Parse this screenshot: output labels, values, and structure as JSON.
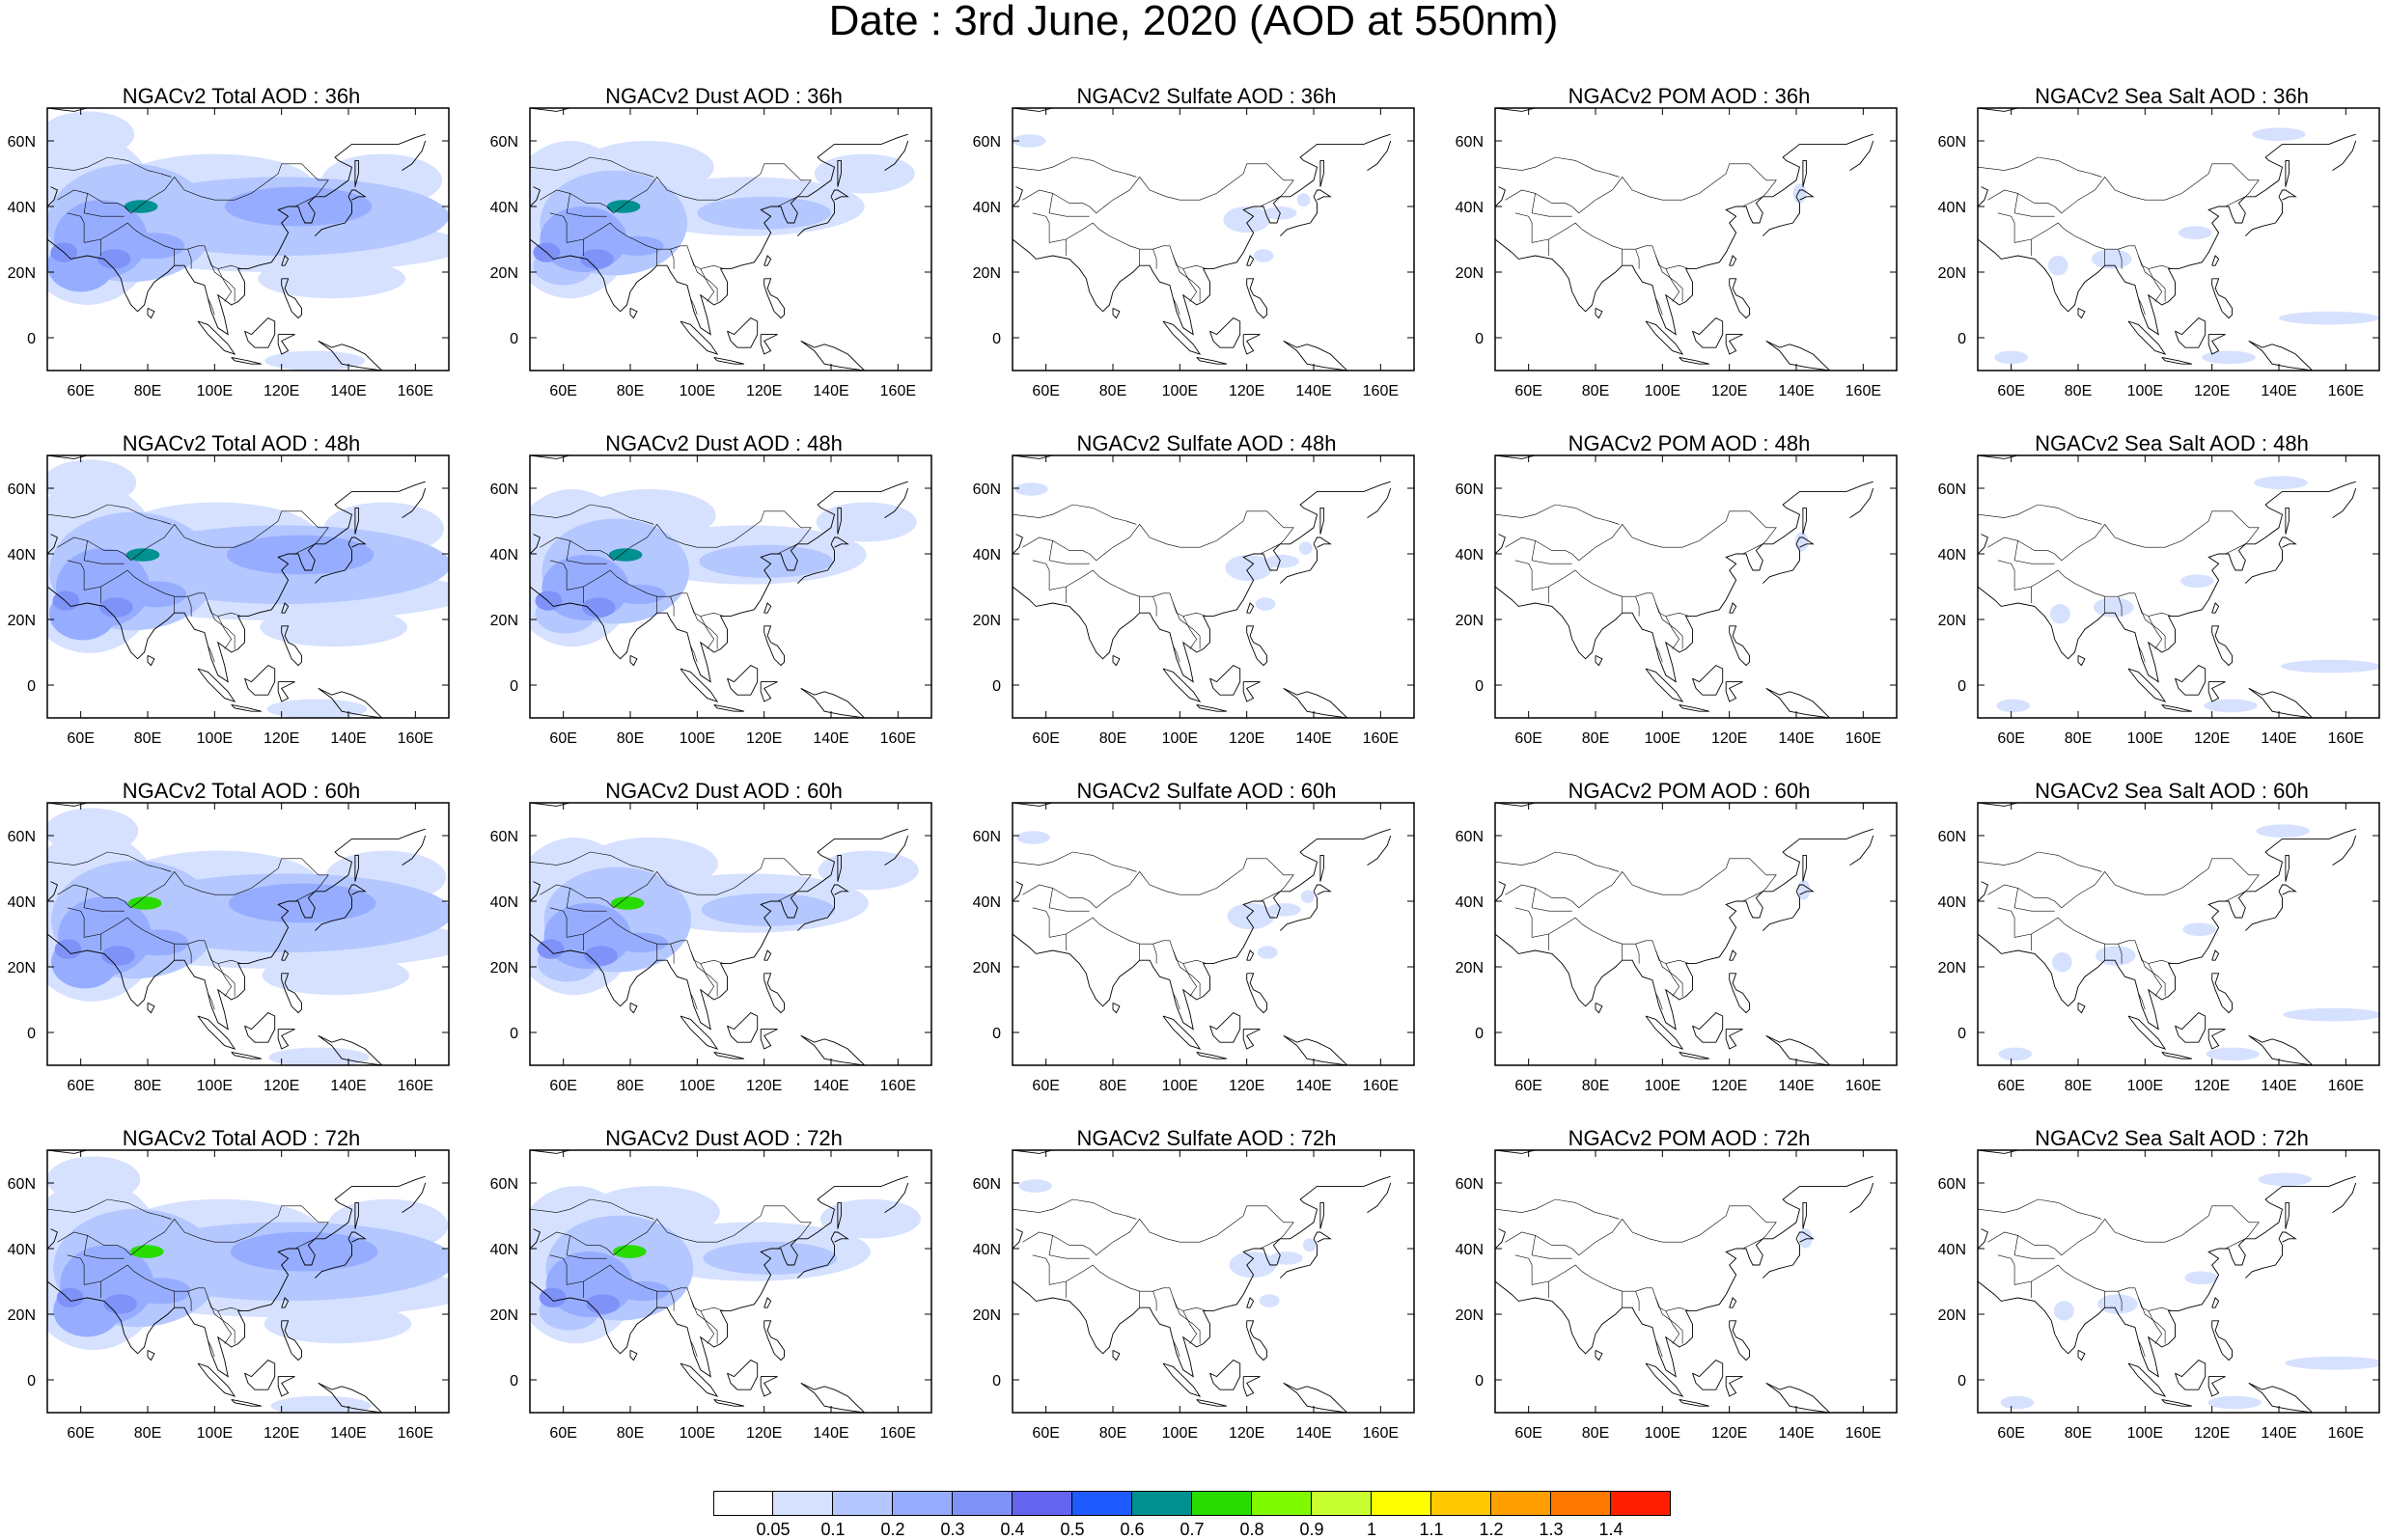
{
  "title": "Date : 3rd June, 2020 (AOD at 550nm)",
  "panels": [
    [
      "NGACv2 Total AOD : 36h",
      "NGACv2 Dust AOD : 36h",
      "NGACv2 Sulfate AOD : 36h",
      "NGACv2 POM AOD : 36h",
      "NGACv2 Sea Salt AOD : 36h"
    ],
    [
      "NGACv2 Total AOD : 48h",
      "NGACv2 Dust AOD : 48h",
      "NGACv2 Sulfate AOD : 48h",
      "NGACv2 POM AOD : 48h",
      "NGACv2 Sea Salt AOD : 48h"
    ],
    [
      "NGACv2 Total AOD : 60h",
      "NGACv2 Dust AOD : 60h",
      "NGACv2 Sulfate AOD : 60h",
      "NGACv2 POM AOD : 60h",
      "NGACv2 Sea Salt AOD : 60h"
    ],
    [
      "NGACv2 Total AOD : 72h",
      "NGACv2 Dust AOD : 72h",
      "NGACv2 Sulfate AOD : 72h",
      "NGACv2 POM AOD : 72h",
      "NGACv2 Sea Salt  AOD : 72h"
    ]
  ],
  "map_extent": {
    "lon": [
      50,
      170
    ],
    "lat": [
      -10,
      70
    ]
  },
  "lon_ticks": [
    "60E",
    "80E",
    "100E",
    "120E",
    "140E",
    "160E"
  ],
  "lat_ticks": [
    "60N",
    "40N",
    "20N",
    "0"
  ],
  "colorbar": {
    "labels": [
      "0.05",
      "0.1",
      "0.2",
      "0.3",
      "0.4",
      "0.5",
      "0.6",
      "0.7",
      "0.8",
      "0.9",
      "1",
      "1.1",
      "1.2",
      "1.3",
      "1.4"
    ],
    "colors": [
      "#ffffff",
      "#d6e1ff",
      "#b4c7ff",
      "#96adff",
      "#7e92f8",
      "#6464ee",
      "#1e5aff",
      "#009090",
      "#28dc00",
      "#7ffa00",
      "#c8ff32",
      "#ffff00",
      "#ffc800",
      "#ffa000",
      "#ff7800",
      "#ff1e00"
    ]
  }
}
